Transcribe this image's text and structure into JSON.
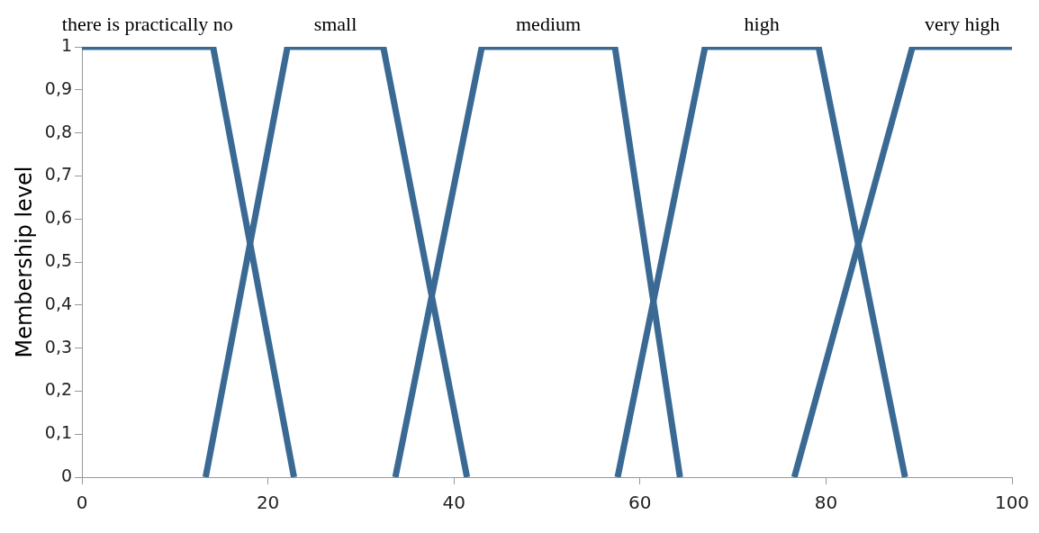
{
  "chart_data": {
    "type": "line",
    "ylabel": "Membership level",
    "xlim": [
      0,
      100
    ],
    "xticks": [
      0,
      20,
      40,
      60,
      80,
      100
    ],
    "ylim": [
      0,
      1
    ],
    "yticks": [
      {
        "value": 0,
        "label": "0"
      },
      {
        "value": 0.1,
        "label": "0,1"
      },
      {
        "value": 0.2,
        "label": "0,2"
      },
      {
        "value": 0.3,
        "label": "0,3"
      },
      {
        "value": 0.4,
        "label": "0,4"
      },
      {
        "value": 0.5,
        "label": "0,5"
      },
      {
        "value": 0.6,
        "label": "0,6"
      },
      {
        "value": 0.7,
        "label": "0,7"
      },
      {
        "value": 0.8,
        "label": "0,8"
      },
      {
        "value": 0.9,
        "label": "0,9"
      },
      {
        "value": 1,
        "label": "1"
      }
    ],
    "grid": false,
    "legend": false,
    "marker": "none",
    "series": [
      {
        "name": "there is practically no",
        "color": "#3a6a94",
        "x": [
          0,
          14.1,
          22.8
        ],
        "values": [
          1,
          1,
          0
        ]
      },
      {
        "name": "small",
        "color": "#3a6a94",
        "x": [
          13.3,
          22.1,
          32.4,
          41.4
        ],
        "values": [
          0,
          1,
          1,
          0
        ]
      },
      {
        "name": "medium",
        "color": "#3a6a94",
        "x": [
          33.7,
          43,
          57.3,
          64.3
        ],
        "values": [
          0,
          1,
          1,
          0
        ]
      },
      {
        "name": "high",
        "color": "#3a6a94",
        "x": [
          57.6,
          67,
          79.2,
          88.5
        ],
        "values": [
          0,
          1,
          1,
          0
        ]
      },
      {
        "name": "very high",
        "color": "#3a6a94",
        "x": [
          76.6,
          89.3,
          100
        ],
        "values": [
          0,
          1,
          1
        ]
      }
    ]
  }
}
